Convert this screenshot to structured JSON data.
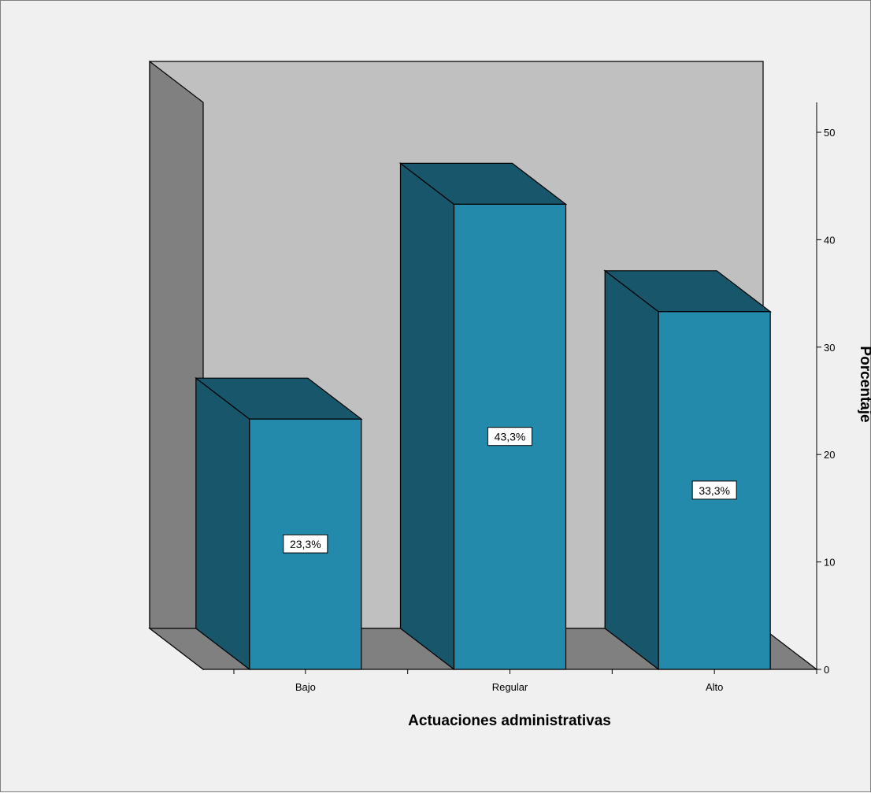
{
  "chart_data": {
    "type": "bar",
    "categories": [
      "Bajo",
      "Regular",
      "Alto"
    ],
    "values": [
      23.3,
      43.3,
      33.3
    ],
    "data_labels": [
      "23,3%",
      "43,3%",
      "33,3%"
    ],
    "xlabel": "Actuaciones administrativas",
    "ylabel": "Porcentaje",
    "ylim": [
      0,
      50
    ],
    "yticks": [
      0,
      10,
      20,
      30,
      40,
      50
    ],
    "y_axis_side": "right",
    "three_d": true,
    "grid": false,
    "legend": "none",
    "colors": {
      "bar_front": "#248aab",
      "bar_side": "#17566b",
      "bar_top": "#17566b",
      "back_wall": "#c0c0c0",
      "side_wall": "#808080",
      "floor": "#808080",
      "background": "#f0f0f0"
    }
  }
}
